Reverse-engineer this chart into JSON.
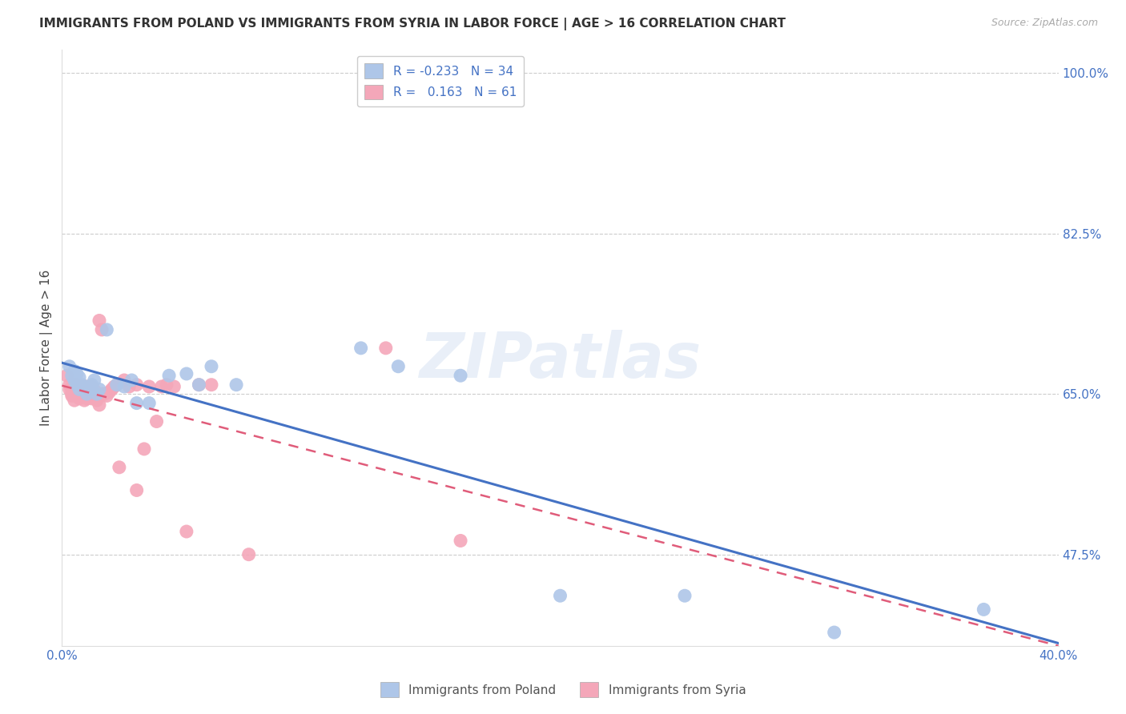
{
  "title": "IMMIGRANTS FROM POLAND VS IMMIGRANTS FROM SYRIA IN LABOR FORCE | AGE > 16 CORRELATION CHART",
  "source": "Source: ZipAtlas.com",
  "ylabel": "In Labor Force | Age > 16",
  "xlim": [
    0.0,
    0.4
  ],
  "ylim": [
    0.375,
    1.025
  ],
  "background_color": "#ffffff",
  "grid_color": "#cccccc",
  "poland_color": "#aec6e8",
  "syria_color": "#f4a7b9",
  "poland_line_color": "#4472c4",
  "syria_line_color": "#e05c7a",
  "poland_r": -0.233,
  "poland_n": 34,
  "syria_r": 0.163,
  "syria_n": 61,
  "legend_label_poland": "Immigrants from Poland",
  "legend_label_syria": "Immigrants from Syria",
  "watermark": "ZIPatlas",
  "poland_x": [
    0.003,
    0.004,
    0.005,
    0.005,
    0.006,
    0.006,
    0.007,
    0.007,
    0.008,
    0.009,
    0.01,
    0.011,
    0.012,
    0.013,
    0.014,
    0.015,
    0.018,
    0.022,
    0.025,
    0.028,
    0.03,
    0.035,
    0.043,
    0.05,
    0.055,
    0.06,
    0.07,
    0.12,
    0.135,
    0.16,
    0.2,
    0.25,
    0.31,
    0.37
  ],
  "poland_y": [
    0.68,
    0.67,
    0.675,
    0.665,
    0.672,
    0.66,
    0.668,
    0.655,
    0.66,
    0.658,
    0.65,
    0.655,
    0.66,
    0.665,
    0.65,
    0.655,
    0.72,
    0.66,
    0.658,
    0.665,
    0.64,
    0.64,
    0.67,
    0.672,
    0.66,
    0.68,
    0.66,
    0.7,
    0.68,
    0.67,
    0.43,
    0.43,
    0.39,
    0.415
  ],
  "syria_x": [
    0.002,
    0.003,
    0.003,
    0.004,
    0.004,
    0.004,
    0.005,
    0.005,
    0.005,
    0.005,
    0.006,
    0.006,
    0.006,
    0.007,
    0.007,
    0.007,
    0.008,
    0.008,
    0.008,
    0.009,
    0.009,
    0.009,
    0.01,
    0.01,
    0.01,
    0.011,
    0.011,
    0.012,
    0.012,
    0.012,
    0.013,
    0.013,
    0.014,
    0.014,
    0.015,
    0.015,
    0.016,
    0.016,
    0.017,
    0.018,
    0.019,
    0.02,
    0.021,
    0.022,
    0.023,
    0.025,
    0.027,
    0.03,
    0.03,
    0.033,
    0.035,
    0.038,
    0.04,
    0.042,
    0.045,
    0.05,
    0.055,
    0.06,
    0.075,
    0.13,
    0.16
  ],
  "syria_y": [
    0.67,
    0.66,
    0.655,
    0.65,
    0.648,
    0.655,
    0.65,
    0.643,
    0.655,
    0.66,
    0.648,
    0.652,
    0.66,
    0.645,
    0.65,
    0.655,
    0.648,
    0.652,
    0.658,
    0.643,
    0.648,
    0.652,
    0.645,
    0.65,
    0.658,
    0.648,
    0.654,
    0.65,
    0.645,
    0.658,
    0.648,
    0.654,
    0.65,
    0.643,
    0.638,
    0.73,
    0.65,
    0.72,
    0.65,
    0.648,
    0.652,
    0.655,
    0.658,
    0.66,
    0.57,
    0.665,
    0.658,
    0.66,
    0.545,
    0.59,
    0.658,
    0.62,
    0.658,
    0.66,
    0.658,
    0.5,
    0.66,
    0.66,
    0.475,
    0.7,
    0.49
  ]
}
